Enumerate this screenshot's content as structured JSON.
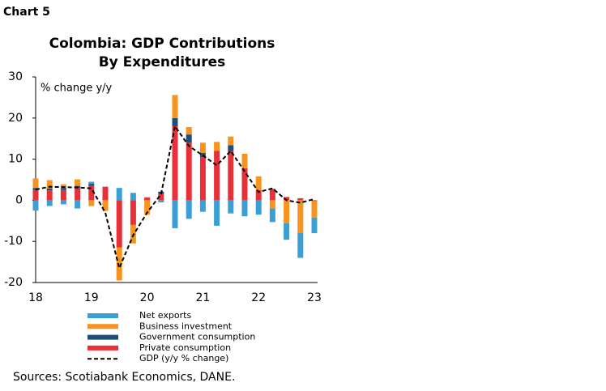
{
  "header": "Chart 5",
  "chart_data": {
    "type": "bar",
    "title": [
      "Colombia: GDP Contributions",
      "By Expenditures"
    ],
    "ylabel": "% change y/y",
    "categories": [
      "18",
      null,
      null,
      null,
      "19",
      null,
      null,
      null,
      "20",
      null,
      null,
      null,
      "21",
      null,
      null,
      null,
      "22",
      null,
      null,
      null,
      "23"
    ],
    "series": [
      {
        "name": "Net exports",
        "color": "#3b9fd6",
        "values": [
          -2.5,
          -1.4,
          -1.0,
          -2.0,
          0.5,
          0,
          3.0,
          1.8,
          0,
          -0.5,
          -6.8,
          -4.5,
          -2.8,
          -6.2,
          -3.2,
          -3.9,
          -3.5,
          -3.3,
          -4.0,
          -6.0,
          -3.8
        ]
      },
      {
        "name": "Business investment",
        "color": "#f7941d",
        "values": [
          2.3,
          2.0,
          0.9,
          1.6,
          -1.4,
          -2.6,
          -8.0,
          -4.5,
          -3.5,
          0,
          5.6,
          1.8,
          2.5,
          2.2,
          2.1,
          3.5,
          3.3,
          -2.0,
          -5.6,
          -8.0,
          -4.0
        ]
      },
      {
        "name": "Government consumption",
        "color": "#1f4e79",
        "values": [
          0.5,
          0.5,
          0.5,
          0.5,
          0.5,
          0,
          0,
          0,
          0,
          0.6,
          2.0,
          2.0,
          1.0,
          0,
          1.4,
          0,
          0,
          0,
          0,
          0,
          0
        ]
      },
      {
        "name": "Private consumption",
        "color": "#e8303b",
        "values": [
          2.5,
          2.4,
          2.5,
          3.0,
          3.5,
          3.3,
          -11.5,
          -6.0,
          0.7,
          1.5,
          18.0,
          14.0,
          10.5,
          12.0,
          12.0,
          7.8,
          2.5,
          2.8,
          0.8,
          0.5,
          -0.2
        ]
      },
      {
        "name": "GDP (y/y % change)",
        "type": "line",
        "color": "#000000",
        "values": [
          2.6,
          3.3,
          3.2,
          3.1,
          2.9,
          -3.0,
          -16.5,
          -8.5,
          -3.0,
          1.5,
          18.0,
          13.2,
          10.9,
          8.5,
          12.0,
          7.0,
          2.0,
          2.9,
          0.0,
          -0.6,
          0.3
        ]
      }
    ],
    "ylim": [
      -20,
      30
    ],
    "yticks": [
      -20,
      -10,
      0,
      10,
      20,
      30
    ],
    "source": "Sources: Scotiabank Economics, DANE."
  }
}
